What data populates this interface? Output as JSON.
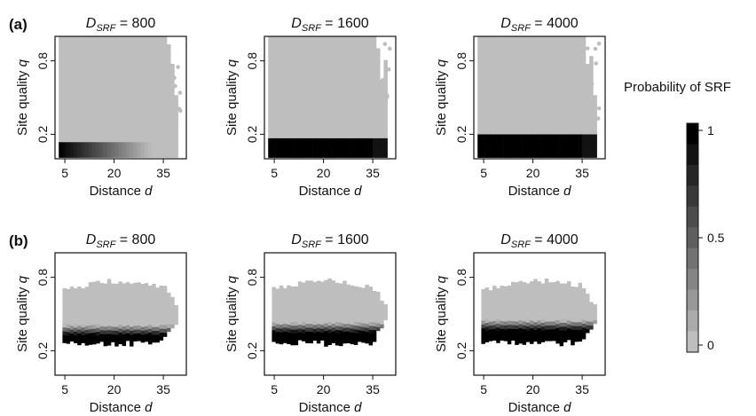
{
  "figure": {
    "row_tags": [
      "(a)",
      "(b)"
    ],
    "title_symbol": "D",
    "title_subscript": "SRF",
    "title_equals": " = "
  },
  "chart_data": {
    "type": "heatmap",
    "xlabel_text": "Distance ",
    "xlabel_var": "d",
    "ylabel_text": "Site quality ",
    "ylabel_var": "q",
    "xlim": [
      2,
      42
    ],
    "ylim": [
      0.0,
      1.0
    ],
    "x_ticks": [
      5,
      20,
      35
    ],
    "y_ticks": [
      0.2,
      0.8
    ],
    "colors": {
      "low": "#bebebe",
      "high": "#000000"
    },
    "legend": {
      "title": "Probability of SRF",
      "placement": "right",
      "ticks": [
        {
          "value": 1,
          "label": "1"
        },
        {
          "value": 0.5,
          "label": "0.5"
        },
        {
          "value": 0,
          "label": "0"
        }
      ]
    },
    "panels": [
      {
        "row": "(a)",
        "D_SRF": "800",
        "domain": "full",
        "srf_q_top": 0.15
      },
      {
        "row": "(a)",
        "D_SRF": "1600",
        "domain": "full",
        "srf_q_top": 0.17
      },
      {
        "row": "(a)",
        "D_SRF": "4000",
        "domain": "full",
        "srf_q_top": 0.21
      },
      {
        "row": "(b)",
        "D_SRF": "800",
        "domain": "cloud",
        "q_band": [
          0.27,
          0.74
        ],
        "srf_q_top": 0.41
      },
      {
        "row": "(b)",
        "D_SRF": "1600",
        "domain": "cloud",
        "q_band": [
          0.27,
          0.74
        ],
        "srf_q_top": 0.43
      },
      {
        "row": "(b)",
        "D_SRF": "4000",
        "domain": "cloud",
        "q_band": [
          0.27,
          0.74
        ],
        "srf_q_top": 0.45
      }
    ]
  }
}
